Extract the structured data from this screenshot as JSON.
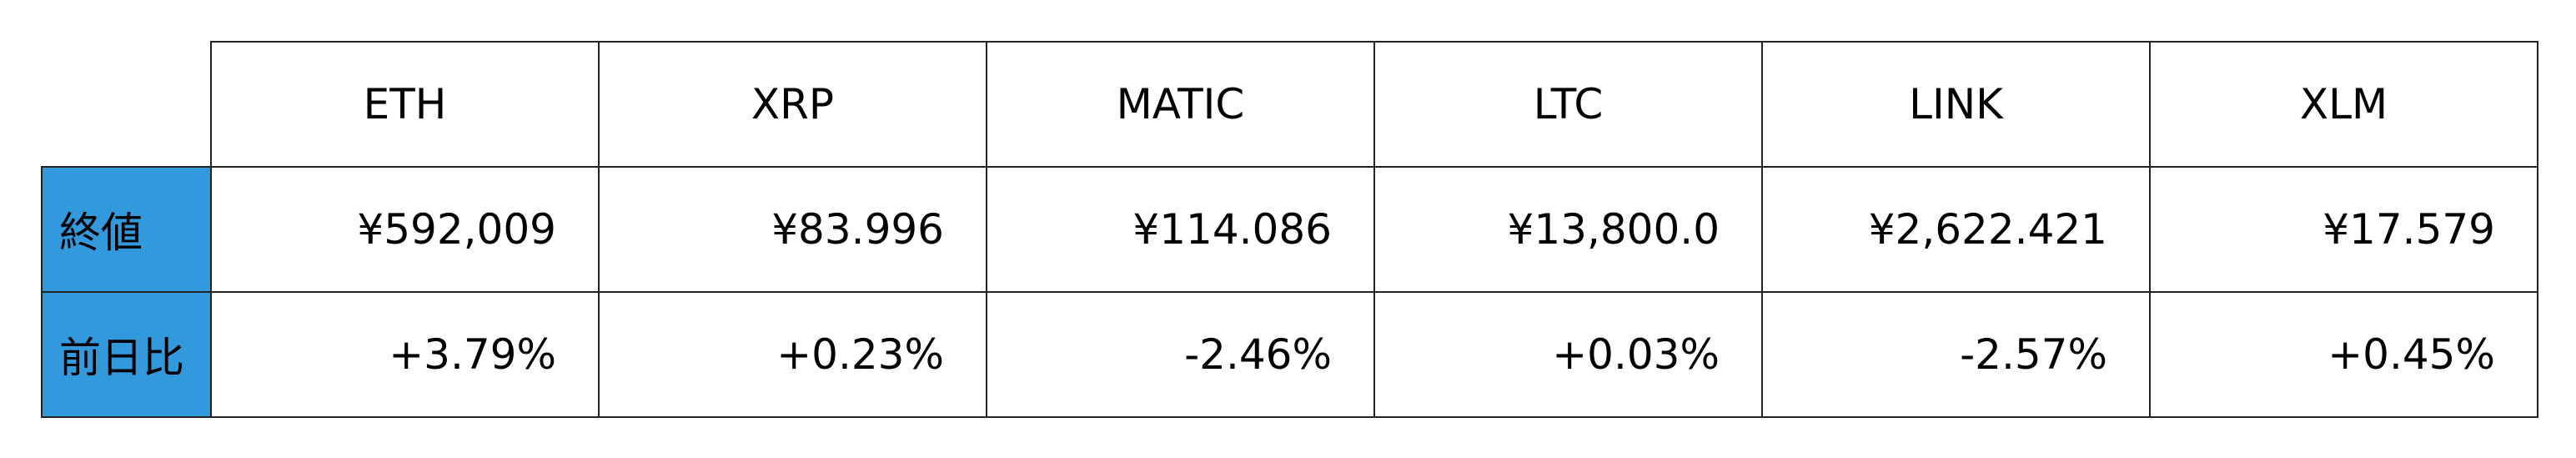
{
  "table": {
    "columns": [
      "ETH",
      "XRP",
      "MATIC",
      "LTC",
      "LINK",
      "XLM"
    ],
    "rows": [
      {
        "label": "終値",
        "values": [
          "¥592,009",
          "¥83.996",
          "¥114.086",
          "¥13,800.0",
          "¥2,622.421",
          "¥17.579"
        ]
      },
      {
        "label": "前日比",
        "values": [
          "+3.79%",
          "+0.23%",
          "-2.46%",
          "+0.03%",
          "-2.57%",
          "+0.45%"
        ]
      }
    ],
    "row_header_color": "#3399dd"
  }
}
